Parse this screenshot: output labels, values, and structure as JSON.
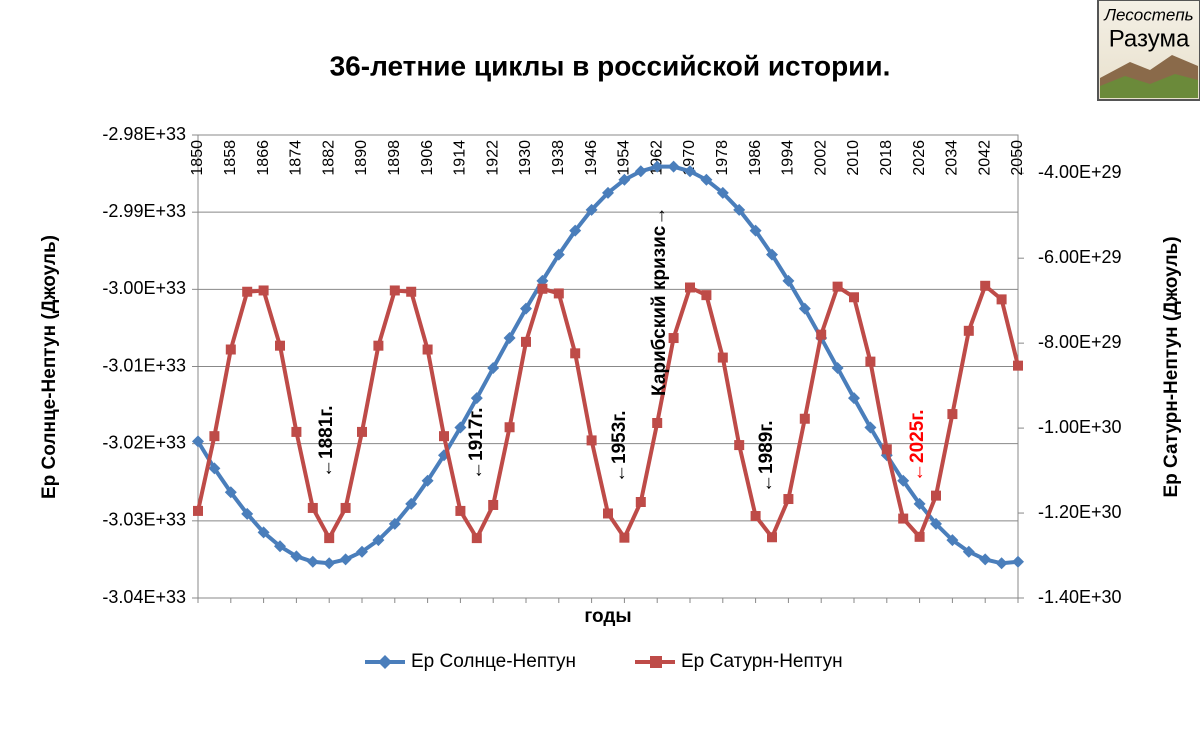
{
  "chart_data": {
    "type": "line",
    "title": "36-летние циклы в российской истории.",
    "x_label": "годы",
    "y_label": "Ер Солнце-Нептун (Джоуль)",
    "y2_label": "Ер Сатурн-Нептун (Джоуль)",
    "x": [
      1850,
      1854,
      1858,
      1862,
      1866,
      1870,
      1874,
      1878,
      1882,
      1886,
      1890,
      1894,
      1898,
      1902,
      1906,
      1910,
      1914,
      1918,
      1922,
      1926,
      1930,
      1934,
      1938,
      1942,
      1946,
      1950,
      1954,
      1958,
      1962,
      1966,
      1970,
      1974,
      1978,
      1982,
      1986,
      1990,
      1994,
      1998,
      2002,
      2006,
      2010,
      2014,
      2018,
      2022,
      2026,
      2030,
      2034,
      2038,
      2042,
      2046,
      2050
    ],
    "xlim": [
      1850,
      2050
    ],
    "xticks": [
      1850,
      1858,
      1866,
      1874,
      1882,
      1890,
      1898,
      1906,
      1914,
      1922,
      1930,
      1938,
      1946,
      1954,
      1962,
      1970,
      1978,
      1986,
      1994,
      2002,
      2010,
      2018,
      2026,
      2034,
      2042,
      2050
    ],
    "ylim": [
      -3.04e+33,
      -2.98e+33
    ],
    "yticks": [
      {
        "value": -2.98e+33,
        "label": "-2.98E+33"
      },
      {
        "value": -2.99e+33,
        "label": "-2.99E+33"
      },
      {
        "value": -3e+33,
        "label": "-3.00E+33"
      },
      {
        "value": -3.01e+33,
        "label": "-3.01E+33"
      },
      {
        "value": -3.02e+33,
        "label": "-3.02E+33"
      },
      {
        "value": -3.03e+33,
        "label": "-3.03E+33"
      },
      {
        "value": -3.04e+33,
        "label": "-3.04E+33"
      }
    ],
    "y2lim": [
      -1.4e+30,
      -3.1e+29
    ],
    "y2ticks": [
      {
        "value": -4e+29,
        "label": "-4.00E+29"
      },
      {
        "value": -6e+29,
        "label": "-6.00E+29"
      },
      {
        "value": -8e+29,
        "label": "-8.00E+29"
      },
      {
        "value": -1e+30,
        "label": "-1.00E+30"
      },
      {
        "value": -1.2e+30,
        "label": "-1.20E+30"
      },
      {
        "value": -1.4e+30,
        "label": "-1.40E+30"
      }
    ],
    "grid": true,
    "legend": "bottom",
    "series": [
      {
        "name": "Ер Солнце-Нептун",
        "color": "#4a7ebb",
        "marker": "diamond",
        "axis": "y",
        "values": [
          -3.0197e+33,
          -3.0232e+33,
          -3.0263e+33,
          -3.0291e+33,
          -3.0315e+33,
          -3.0333e+33,
          -3.0346e+33,
          -3.0353e+33,
          -3.0355e+33,
          -3.035e+33,
          -3.034e+33,
          -3.0325e+33,
          -3.0304e+33,
          -3.0278e+33,
          -3.0248e+33,
          -3.0215e+33,
          -3.0179e+33,
          -3.0141e+33,
          -3.0102e+33,
          -3.0063e+33,
          -3.0025e+33,
          -2.9989e+33,
          -2.9955e+33,
          -2.9924e+33,
          -2.9897e+33,
          -2.9875e+33,
          -2.9858e+33,
          -2.9847e+33,
          -2.9841e+33,
          -2.9841e+33,
          -2.9847e+33,
          -2.9858e+33,
          -2.9875e+33,
          -2.9897e+33,
          -2.9924e+33,
          -2.9955e+33,
          -2.9989e+33,
          -3.0025e+33,
          -3.0063e+33,
          -3.0102e+33,
          -3.0141e+33,
          -3.0179e+33,
          -3.0215e+33,
          -3.0248e+33,
          -3.0278e+33,
          -3.0304e+33,
          -3.0325e+33,
          -3.034e+33,
          -3.035e+33,
          -3.0355e+33,
          -3.0353e+33
        ]
      },
      {
        "name": "Ер Сатурн-Нептун",
        "color": "#be4b48",
        "marker": "square",
        "axis": "y2",
        "values": [
          -1.195e+30,
          -1.019e+30,
          -8.15e+29,
          -6.79e+29,
          -6.76e+29,
          -8.06e+29,
          -1.009e+30,
          -1.188e+30,
          -1.259e+30,
          -1.188e+30,
          -1.009e+30,
          -8.06e+29,
          -6.76e+29,
          -6.79e+29,
          -8.15e+29,
          -1.019e+30,
          -1.195e+30,
          -1.259e+30,
          -1.181e+30,
          -9.98e+29,
          -7.97e+29,
          -6.72e+29,
          -6.83e+29,
          -8.24e+29,
          -1.029e+30,
          -1.201e+30,
          -1.258e+30,
          -1.174e+30,
          -9.88e+29,
          -7.88e+29,
          -6.69e+29,
          -6.87e+29,
          -8.34e+29,
          -1.04e+30,
          -1.207e+30,
          -1.257e+30,
          -1.167e+30,
          -9.78e+29,
          -7.8e+29,
          -6.67e+29,
          -6.92e+29,
          -8.435e+29,
          -1.05e+30,
          -1.213e+30,
          -1.256e+30,
          -1.159e+30,
          -9.67e+29,
          -7.71e+29,
          -6.65e+29,
          -6.97e+29,
          -8.53e+29
        ]
      }
    ],
    "annotations": [
      {
        "text": "←1881г.",
        "color": "#000000"
      },
      {
        "text": "←1917г.",
        "color": "#000000"
      },
      {
        "text": "←1953г.",
        "color": "#000000"
      },
      {
        "text": "Карибский кризис→",
        "color": "#000000"
      },
      {
        "text": "←1989г.",
        "color": "#000000"
      },
      {
        "text": "←2025г.",
        "color": "#ff0000"
      }
    ]
  },
  "logo": {
    "line1": "Лесостепь",
    "line2": "Разума"
  }
}
